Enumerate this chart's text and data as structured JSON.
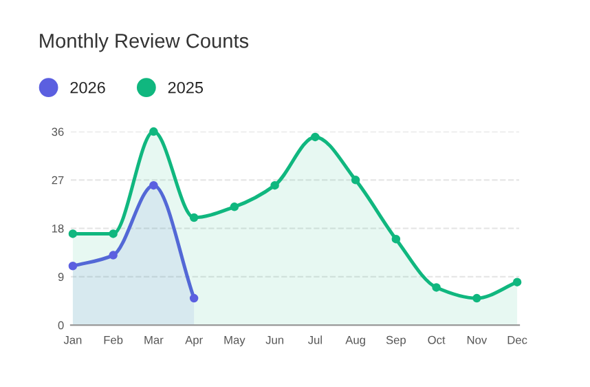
{
  "chart_data": {
    "type": "area",
    "title": "Monthly Review Counts",
    "categories": [
      "Jan",
      "Feb",
      "Mar",
      "Apr",
      "May",
      "Jun",
      "Jul",
      "Aug",
      "Sep",
      "Oct",
      "Nov",
      "Dec"
    ],
    "series": [
      {
        "name": "2026",
        "color": "#5b5fe0",
        "values": [
          11,
          13,
          26,
          5,
          null,
          null,
          null,
          null,
          null,
          null,
          null,
          null
        ]
      },
      {
        "name": "2025",
        "color": "#10b77f",
        "values": [
          17,
          17,
          36,
          20,
          22,
          26,
          35,
          27,
          16,
          7,
          5,
          8
        ]
      }
    ],
    "ylim": [
      0,
      36
    ],
    "yticks": [
      0,
      9,
      18,
      27,
      36
    ],
    "grid": "y",
    "legend": "top left",
    "marker": "circle"
  }
}
